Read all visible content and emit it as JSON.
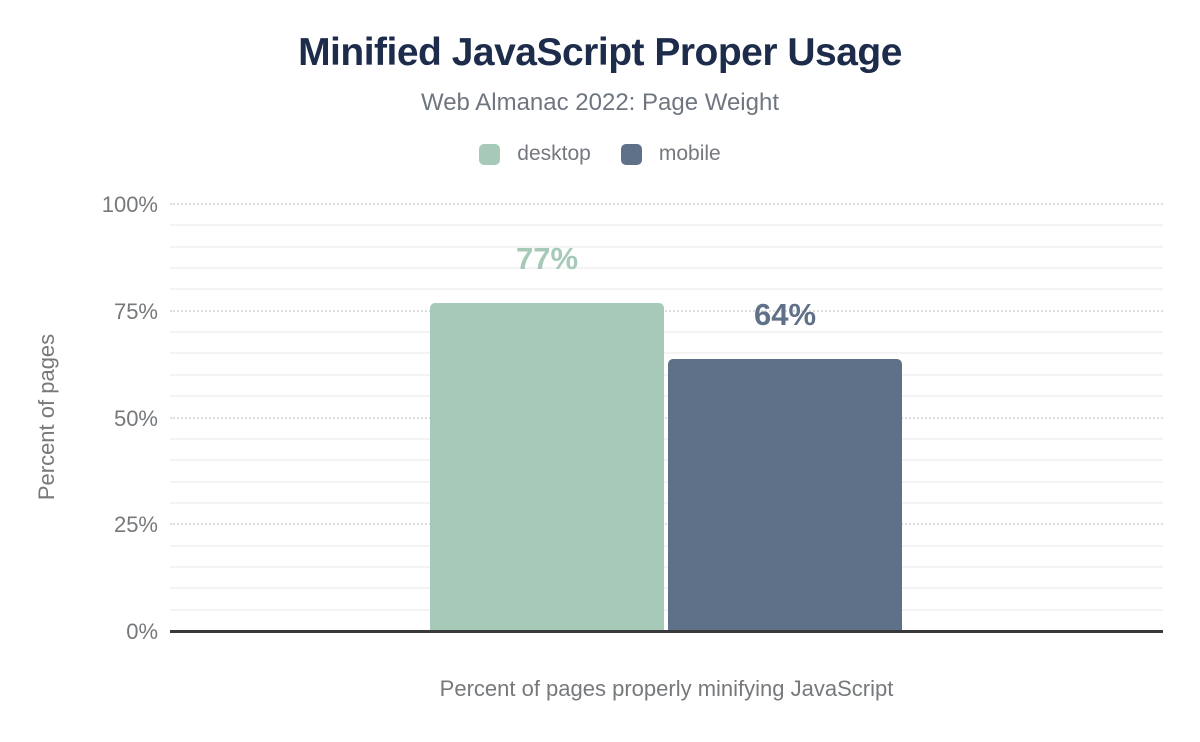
{
  "header": {
    "title": "Minified JavaScript Proper Usage",
    "subtitle": "Web Almanac 2022: Page Weight"
  },
  "legend": {
    "items": [
      {
        "label": "desktop",
        "color": "#a6c9b8"
      },
      {
        "label": "mobile",
        "color": "#5f7089"
      }
    ]
  },
  "axes": {
    "y_title": "Percent of pages",
    "x_title": "Percent of pages properly minifying JavaScript",
    "y_ticks": [
      {
        "value": 0,
        "label": "0%"
      },
      {
        "value": 25,
        "label": "25%"
      },
      {
        "value": 50,
        "label": "50%"
      },
      {
        "value": 75,
        "label": "75%"
      },
      {
        "value": 100,
        "label": "100%"
      }
    ]
  },
  "chart_data": {
    "type": "bar",
    "title": "Minified JavaScript Proper Usage",
    "subtitle": "Web Almanac 2022: Page Weight",
    "categories": [
      "Percent of pages properly minifying JavaScript"
    ],
    "series": [
      {
        "name": "desktop",
        "values": [
          77
        ],
        "label": "77%",
        "color": "#a6c9b8"
      },
      {
        "name": "mobile",
        "values": [
          64
        ],
        "label": "64%",
        "color": "#5f7089"
      }
    ],
    "xlabel": "Percent of pages properly minifying JavaScript",
    "ylabel": "Percent of pages",
    "ylim": [
      0,
      100
    ],
    "ytick_major_step": 25,
    "ytick_minor_step": 5,
    "grid": true,
    "legend_position": "top",
    "colors": {
      "title": "#1e2c4c",
      "axis_line": "#37393b",
      "text_muted": "#76797c"
    }
  }
}
